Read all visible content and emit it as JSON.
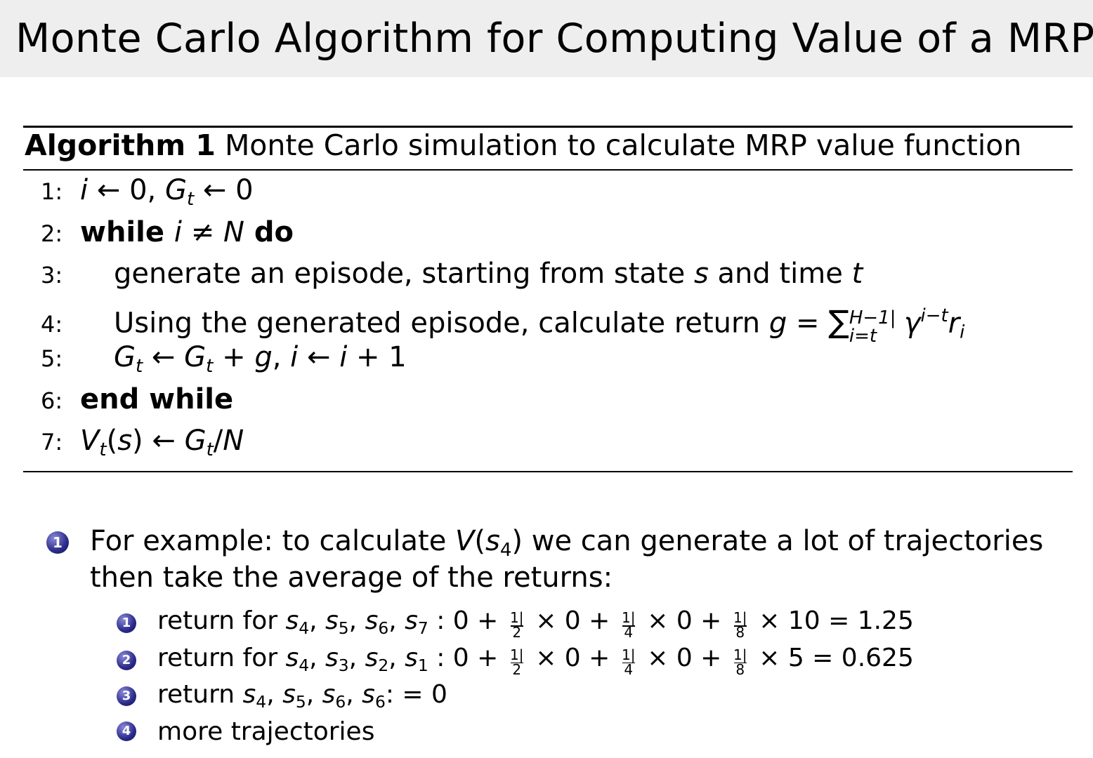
{
  "title": "Monte Carlo Algorithm for Computing Value of a MRP",
  "algorithm": {
    "label": "Algorithm 1",
    "caption": "Monte Carlo simulation to calculate MRP value function",
    "lines": [
      {
        "num": "1:",
        "indent": 0,
        "parts": [
          [
            "i",
            "i"
          ],
          [
            " ← 0, ",
            ""
          ],
          [
            "G",
            "i"
          ],
          [
            "t",
            "sub"
          ],
          [
            " ← 0",
            ""
          ]
        ]
      },
      {
        "num": "2:",
        "indent": 0,
        "parts": [
          [
            "while ",
            "b"
          ],
          [
            "i",
            "i"
          ],
          [
            " ≠ ",
            ""
          ],
          [
            "N",
            "i"
          ],
          [
            " do",
            "b"
          ]
        ]
      },
      {
        "num": "3:",
        "indent": 1,
        "parts": [
          [
            "generate an episode, starting from state ",
            ""
          ],
          [
            "s",
            "i"
          ],
          [
            " and time ",
            ""
          ],
          [
            "t",
            "i"
          ]
        ]
      },
      {
        "num": "4:",
        "indent": 1,
        "parts": [
          [
            "Using the generated episode, calculate return ",
            ""
          ],
          [
            "g",
            "i"
          ],
          [
            " = ",
            ""
          ],
          [
            "∑",
            "sigma"
          ],
          [
            "H−1|i=t",
            "sumlim"
          ],
          [
            "γ",
            "i"
          ],
          [
            "i−t",
            "sup"
          ],
          [
            "r",
            "i"
          ],
          [
            "i",
            "sub"
          ]
        ]
      },
      {
        "num": "5:",
        "indent": 1,
        "parts": [
          [
            "G",
            "i"
          ],
          [
            "t",
            "sub"
          ],
          [
            " ← ",
            ""
          ],
          [
            "G",
            "i"
          ],
          [
            "t",
            "sub"
          ],
          [
            " + ",
            ""
          ],
          [
            "g",
            "i"
          ],
          [
            ", ",
            ""
          ],
          [
            "i",
            "i"
          ],
          [
            " ← ",
            ""
          ],
          [
            "i",
            "i"
          ],
          [
            " + 1",
            ""
          ]
        ]
      },
      {
        "num": "6:",
        "indent": 0,
        "parts": [
          [
            "end while",
            "b"
          ]
        ]
      },
      {
        "num": "7:",
        "indent": 0,
        "parts": [
          [
            "V",
            "i"
          ],
          [
            "t",
            "sub"
          ],
          [
            "(",
            ""
          ],
          [
            "s",
            "i"
          ],
          [
            ") ← ",
            ""
          ],
          [
            "G",
            "i"
          ],
          [
            "t",
            "sub"
          ],
          [
            "/",
            ""
          ],
          [
            "N",
            "i"
          ]
        ]
      }
    ]
  },
  "bullets": {
    "main": {
      "marker": "1",
      "parts": [
        [
          "For example: to calculate ",
          ""
        ],
        [
          "V",
          "i"
        ],
        [
          "(",
          ""
        ],
        [
          "s",
          "i"
        ],
        [
          "4",
          "subn"
        ],
        [
          ") we can generate a lot of trajectories",
          ""
        ]
      ],
      "continuation": "then take the average of the returns:"
    },
    "sub": [
      {
        "marker": "1",
        "parts": [
          [
            "return for ",
            ""
          ],
          [
            "s",
            "i"
          ],
          [
            "4",
            "subn"
          ],
          [
            ", ",
            ""
          ],
          [
            "s",
            "i"
          ],
          [
            "5",
            "subn"
          ],
          [
            ", ",
            ""
          ],
          [
            "s",
            "i"
          ],
          [
            "6",
            "subn"
          ],
          [
            ", ",
            ""
          ],
          [
            "s",
            "i"
          ],
          [
            "7",
            "subn"
          ],
          [
            " : 0 + ",
            ""
          ],
          [
            "1|2",
            "frac"
          ],
          [
            " × 0 + ",
            ""
          ],
          [
            "1|4",
            "frac"
          ],
          [
            " × 0 + ",
            ""
          ],
          [
            "1|8",
            "frac"
          ],
          [
            " × 10 = 1.25",
            ""
          ]
        ]
      },
      {
        "marker": "2",
        "parts": [
          [
            "return for ",
            ""
          ],
          [
            "s",
            "i"
          ],
          [
            "4",
            "subn"
          ],
          [
            ", ",
            ""
          ],
          [
            "s",
            "i"
          ],
          [
            "3",
            "subn"
          ],
          [
            ", ",
            ""
          ],
          [
            "s",
            "i"
          ],
          [
            "2",
            "subn"
          ],
          [
            ", ",
            ""
          ],
          [
            "s",
            "i"
          ],
          [
            "1",
            "subn"
          ],
          [
            " : 0 + ",
            ""
          ],
          [
            "1|2",
            "frac"
          ],
          [
            " × 0 + ",
            ""
          ],
          [
            "1|4",
            "frac"
          ],
          [
            " × 0 + ",
            ""
          ],
          [
            "1|8",
            "frac"
          ],
          [
            " × 5 = 0.625",
            ""
          ]
        ]
      },
      {
        "marker": "3",
        "parts": [
          [
            "return ",
            ""
          ],
          [
            "s",
            "i"
          ],
          [
            "4",
            "subn"
          ],
          [
            ", ",
            ""
          ],
          [
            "s",
            "i"
          ],
          [
            "5",
            "subn"
          ],
          [
            ", ",
            ""
          ],
          [
            "s",
            "i"
          ],
          [
            "6",
            "subn"
          ],
          [
            ", ",
            ""
          ],
          [
            "s",
            "i"
          ],
          [
            "6",
            "subn"
          ],
          [
            ": = 0",
            ""
          ]
        ]
      },
      {
        "marker": "4",
        "parts": [
          [
            "more trajectories",
            ""
          ]
        ]
      }
    ]
  },
  "colors": {
    "title_bar": "#eeeeee",
    "bullet_ball": "#2a2a8a"
  }
}
